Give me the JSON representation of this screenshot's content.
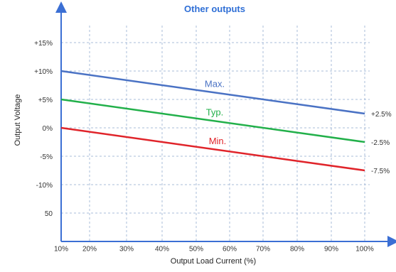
{
  "chart_data": {
    "type": "line",
    "title": "Other outputs",
    "xlabel": "Output Load Current (%)",
    "ylabel": "Output Voltage",
    "x_ticks": [
      "10%",
      "20%",
      "30%",
      "40%",
      "50%",
      "60%",
      "70%",
      "80%",
      "90%",
      "100%"
    ],
    "y_ticks": [
      "+15%",
      "+10%",
      "+5%",
      "0%",
      "-5%",
      "-10%",
      "50"
    ],
    "grid": true,
    "series": [
      {
        "name": "Max.",
        "color": "#4a72c4",
        "x": [
          10,
          100
        ],
        "y": [
          10,
          2.5
        ],
        "end_label": "+2.5%"
      },
      {
        "name": "Typ.",
        "color": "#22b04a",
        "x": [
          10,
          100
        ],
        "y": [
          5,
          -2.5
        ],
        "end_label": "-2.5%"
      },
      {
        "name": "Min.",
        "color": "#e0242a",
        "x": [
          10,
          100
        ],
        "y": [
          0,
          -7.5
        ],
        "end_label": "-7.5%"
      }
    ],
    "colors": {
      "title": "#2f6fd6",
      "axis": "#3b6fd4",
      "grid": "#a8bcd8"
    }
  }
}
